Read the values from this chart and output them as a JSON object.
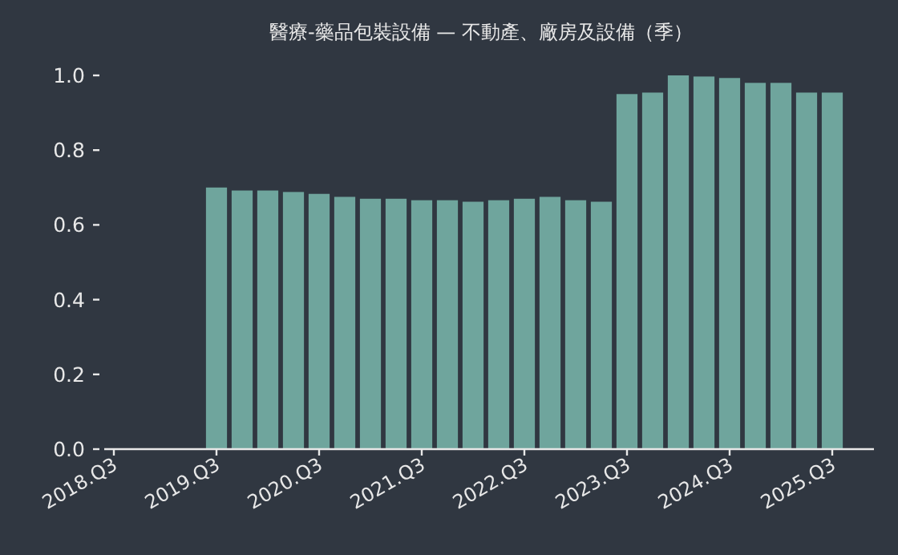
{
  "chart_data": {
    "type": "bar",
    "title": "醫療-藥品包裝設備 — 不動產、廠房及設備（季）",
    "categories": [
      "2018.Q3",
      null,
      null,
      null,
      "2019.Q3",
      null,
      null,
      null,
      "2020.Q3",
      null,
      null,
      null,
      "2021.Q3",
      null,
      null,
      null,
      "2022.Q3",
      null,
      null,
      null,
      "2023.Q3",
      null,
      null,
      null,
      "2024.Q3",
      null,
      null,
      null,
      "2025.Q3"
    ],
    "values": [
      null,
      null,
      null,
      null,
      0.7,
      0.692,
      0.692,
      0.688,
      0.683,
      0.675,
      0.67,
      0.67,
      0.666,
      0.666,
      0.662,
      0.666,
      0.67,
      0.675,
      0.666,
      0.662,
      0.95,
      0.954,
      1.0,
      0.997,
      0.993,
      0.98,
      0.98,
      0.954,
      0.954
    ],
    "color": "#6fa59d",
    "ylim": [
      0,
      1
    ],
    "yticks": [
      {
        "value": 0,
        "label": "0.0"
      },
      {
        "value": 0.2,
        "label": "0.2"
      },
      {
        "value": 0.4,
        "label": "0.4"
      },
      {
        "value": 0.6,
        "label": "0.6"
      },
      {
        "value": 0.8,
        "label": "0.8"
      },
      {
        "value": 1,
        "label": "1.0"
      }
    ],
    "grid": false
  }
}
